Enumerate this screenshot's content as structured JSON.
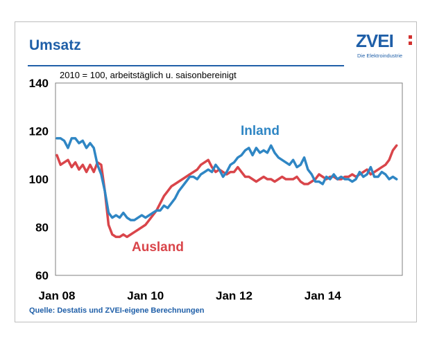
{
  "header": {
    "title": "Umsatz",
    "logo_text": "ZVEI",
    "logo_subtitle": "Die Elektroindustrie"
  },
  "footer": {
    "source": "Quelle: Destatis und ZVEI-eigene Berechnungen"
  },
  "colors": {
    "brand_blue": "#1f5fa8",
    "inland": "#2f86c4",
    "ausland": "#d9454a",
    "logo_dots": "#d2312f"
  },
  "chart_data": {
    "type": "line",
    "subtitle": "2010 = 100, arbeitstäglich u. saisonbereinigt",
    "x_tick_labels": [
      "Jan 08",
      "Jan 10",
      "Jan 12",
      "Jan 14"
    ],
    "x_tick_months": [
      0,
      24,
      48,
      72
    ],
    "y_ticks": [
      60,
      80,
      100,
      120,
      140
    ],
    "ylim": [
      60,
      140
    ],
    "x_range_months": [
      0,
      93
    ],
    "grid": false,
    "series": [
      {
        "name": "Inland",
        "color_key": "inland",
        "values": [
          117,
          117,
          116,
          113,
          117,
          117,
          115,
          116,
          113,
          115,
          113,
          106,
          102,
          95,
          86,
          84,
          85,
          84,
          86,
          84,
          83,
          83,
          84,
          85,
          84,
          85,
          86,
          87,
          87,
          89,
          88,
          90,
          92,
          95,
          97,
          99,
          101,
          101,
          100,
          102,
          103,
          104,
          103,
          106,
          104,
          101,
          103,
          106,
          107,
          109,
          110,
          112,
          113,
          110,
          113,
          111,
          112,
          111,
          114,
          111,
          109,
          108,
          107,
          106,
          108,
          105,
          106,
          109,
          104,
          102,
          99,
          99,
          98,
          101,
          100,
          102,
          100,
          101,
          100,
          100,
          99,
          100,
          103,
          101,
          102,
          105,
          101,
          101,
          103,
          102,
          100,
          101,
          100
        ]
      },
      {
        "name": "Ausland",
        "color_key": "ausland",
        "values": [
          110,
          106,
          107,
          108,
          105,
          107,
          104,
          106,
          103,
          106,
          103,
          107,
          106,
          95,
          81,
          77,
          76,
          76,
          77,
          76,
          77,
          78,
          79,
          80,
          81,
          83,
          85,
          87,
          90,
          93,
          95,
          97,
          98,
          99,
          100,
          101,
          102,
          103,
          104,
          106,
          107,
          108,
          105,
          103,
          104,
          103,
          102,
          103,
          103,
          105,
          103,
          101,
          101,
          100,
          99,
          100,
          101,
          100,
          100,
          99,
          100,
          101,
          100,
          100,
          100,
          101,
          99,
          98,
          98,
          99,
          100,
          102,
          101,
          100,
          101,
          101,
          100,
          100,
          101,
          101,
          102,
          101,
          102,
          103,
          104,
          102,
          103,
          104,
          105,
          106,
          108,
          112,
          114
        ]
      }
    ]
  }
}
